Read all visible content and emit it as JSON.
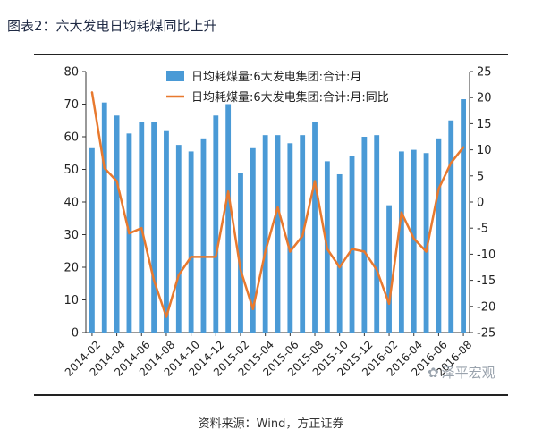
{
  "figure": {
    "title": "图表2：六大发电日均耗煤同比上升",
    "source": "资料来源：Wind，方正证券",
    "watermark": "泽平宏观"
  },
  "colors": {
    "bar": "#4a9ad6",
    "line": "#e8792e",
    "axis": "#333333",
    "text": "#222222"
  },
  "chart_data": {
    "type": "bar",
    "x": [
      "2014-02",
      "2014-03",
      "2014-04",
      "2014-05",
      "2014-06",
      "2014-07",
      "2014-08",
      "2014-09",
      "2014-10",
      "2014-11",
      "2014-12",
      "2015-01",
      "2015-02",
      "2015-03",
      "2015-04",
      "2015-05",
      "2015-06",
      "2015-07",
      "2015-08",
      "2015-09",
      "2015-10",
      "2015-11",
      "2015-12",
      "2016-01",
      "2016-02",
      "2016-03",
      "2016-04",
      "2016-05",
      "2016-06",
      "2016-07",
      "2016-08"
    ],
    "tick_labels": [
      "2014-02",
      "2014-04",
      "2014-06",
      "2014-08",
      "2014-10",
      "2014-12",
      "2015-02",
      "2015-04",
      "2015-06",
      "2015-08",
      "2015-10",
      "2015-12",
      "2016-02",
      "2016-04",
      "2016-06",
      "2016-08"
    ],
    "series": [
      {
        "name": "日均耗煤量:6大发电集团:合计:月",
        "type": "bar",
        "axis": "left",
        "values": [
          56.5,
          70.5,
          66.5,
          61,
          64.5,
          64.5,
          62,
          57.5,
          55.5,
          59.5,
          66.5,
          70,
          49,
          56.5,
          60.5,
          60.5,
          58,
          60.5,
          64.5,
          52.5,
          48.5,
          54,
          60,
          60.5,
          39,
          55.5,
          56,
          55,
          59.5,
          65,
          71.5
        ]
      },
      {
        "name": "日均耗煤量:6大发电集团:合计:月:同比",
        "type": "line",
        "axis": "right",
        "values": [
          21,
          6.5,
          4,
          -6,
          -5,
          -15,
          -22,
          -14,
          -10.5,
          -10.5,
          -10.5,
          2,
          -13,
          -20.5,
          -9.5,
          -1,
          -9.5,
          -6.5,
          4,
          -9,
          -12.5,
          -9,
          -9.5,
          -13,
          -19.5,
          -2,
          -7,
          -9.5,
          2.5,
          7.5,
          10.5
        ]
      }
    ],
    "y_left": {
      "min": 0,
      "max": 80,
      "step": 10
    },
    "y_right": {
      "min": -25,
      "max": 25,
      "step": 5
    },
    "legend_position": "top-center",
    "grid": false
  }
}
